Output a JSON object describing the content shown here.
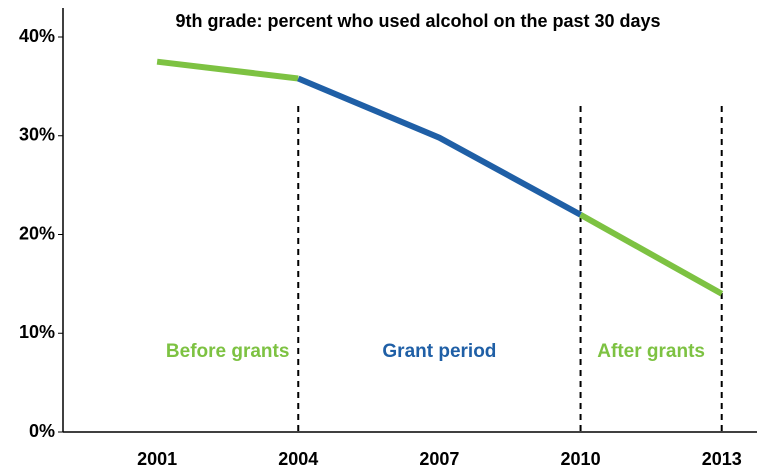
{
  "chart_data": {
    "type": "line",
    "title": "9th grade: percent who used alcohol on the past 30 days",
    "series": [
      {
        "name": "Before grants",
        "color": "#7dc242",
        "x": [
          2001,
          2004
        ],
        "values": [
          37.5,
          35.8
        ]
      },
      {
        "name": "Grant period",
        "color": "#1f5fa6",
        "x": [
          2004,
          2007,
          2010
        ],
        "values": [
          35.8,
          29.8,
          22
        ]
      },
      {
        "name": "After grants",
        "color": "#7dc242",
        "x": [
          2010,
          2013
        ],
        "values": [
          22,
          14
        ]
      }
    ],
    "vlines": [
      2004,
      2010,
      2013
    ],
    "xlim": [
      1999,
      2013.75
    ],
    "xticks": [
      2001,
      2004,
      2007,
      2010,
      2013
    ],
    "ylim": [
      0,
      40
    ],
    "yticks": [
      {
        "value": 0,
        "label": "0%"
      },
      {
        "value": 10,
        "label": "10%"
      },
      {
        "value": 20,
        "label": "20%"
      },
      {
        "value": 30,
        "label": "30%"
      },
      {
        "value": 40,
        "label": "40%"
      }
    ]
  }
}
